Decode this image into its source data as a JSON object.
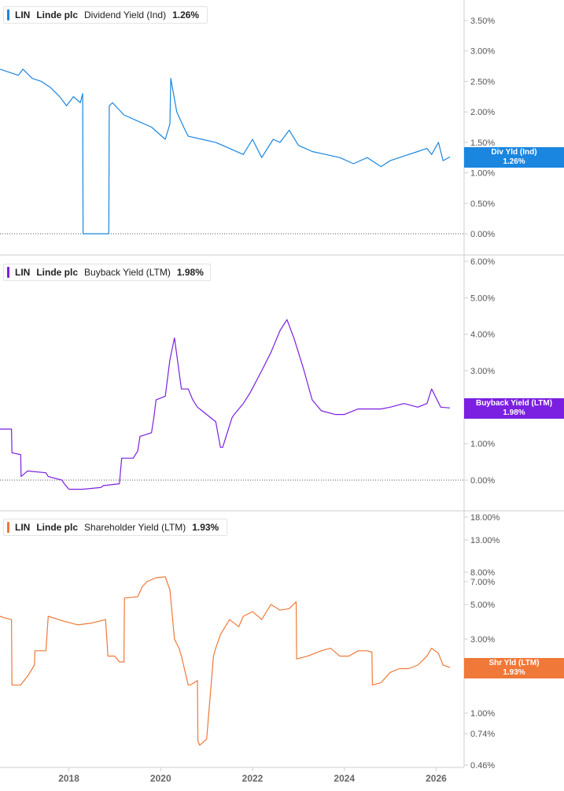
{
  "panels": [
    {
      "ticker": "LIN",
      "company": "Linde plc",
      "metric": "Dividend Yield (Ind)",
      "value": "1.26%",
      "color": "#1a86e0",
      "badge_label": "Div Yld (Ind)",
      "badge_value": "1.26%",
      "ticks": [
        "3.50%",
        "3.00%",
        "2.50%",
        "2.00%",
        "1.50%",
        "1.00%",
        "0.50%",
        "0.00%"
      ]
    },
    {
      "ticker": "LIN",
      "company": "Linde plc",
      "metric": "Buyback Yield (LTM)",
      "value": "1.98%",
      "color": "#7b1fe0",
      "badge_label": "Buyback Yield (LTM)",
      "badge_value": "1.98%",
      "ticks": [
        "6.00%",
        "5.00%",
        "4.00%",
        "3.00%",
        "1.00%",
        "0.00%"
      ]
    },
    {
      "ticker": "LIN",
      "company": "Linde plc",
      "metric": "Shareholder Yield (LTM)",
      "value": "1.93%",
      "color": "#f07838",
      "badge_label": "Shr Yld (LTM)",
      "badge_value": "1.93%",
      "ticks": [
        "18.00%",
        "13.00%",
        "8.00%",
        "7.00%",
        "5.00%",
        "3.00%",
        "2.0",
        "1.00%",
        "0.74%",
        "0.46%"
      ]
    }
  ],
  "x_axis": {
    "ticks": [
      "2018",
      "2020",
      "2022",
      "2024",
      "2026"
    ]
  },
  "chart_data": [
    {
      "type": "line",
      "title": "LIN Linde plc Dividend Yield (Ind) 1.26%",
      "ylim": [
        0,
        3.8
      ],
      "series": [
        {
          "name": "Dividend Yield (Ind)",
          "color": "#1a86e0",
          "x": [
            2016.5,
            2016.7,
            2016.9,
            2017.0,
            2017.2,
            2017.4,
            2017.6,
            2017.8,
            2017.95,
            2018.1,
            2018.25,
            2018.3,
            2018.31,
            2018.87,
            2018.88,
            2018.95,
            2019.2,
            2019.5,
            2019.8,
            2020.1,
            2020.2,
            2020.22,
            2020.35,
            2020.5,
            2020.6,
            2020.9,
            2021.2,
            2021.5,
            2021.8,
            2022.0,
            2022.2,
            2022.45,
            2022.6,
            2022.8,
            2023.0,
            2023.3,
            2023.6,
            2023.9,
            2024.2,
            2024.5,
            2024.8,
            2025.0,
            2025.2,
            2025.4,
            2025.6,
            2025.8,
            2025.9,
            2026.05,
            2026.15,
            2026.3
          ],
          "values": [
            2.7,
            2.65,
            2.6,
            2.7,
            2.55,
            2.5,
            2.4,
            2.25,
            2.1,
            2.25,
            2.15,
            2.3,
            0,
            0,
            2.1,
            2.15,
            1.95,
            1.85,
            1.75,
            1.55,
            1.8,
            2.55,
            2.0,
            1.75,
            1.6,
            1.55,
            1.5,
            1.4,
            1.3,
            1.55,
            1.25,
            1.55,
            1.5,
            1.7,
            1.45,
            1.35,
            1.3,
            1.25,
            1.15,
            1.25,
            1.1,
            1.2,
            1.25,
            1.3,
            1.35,
            1.4,
            1.3,
            1.5,
            1.2,
            1.26
          ]
        }
      ]
    },
    {
      "type": "line",
      "title": "LIN Linde plc Buyback Yield (LTM) 1.98%",
      "ylim": [
        -0.3,
        6.2
      ],
      "series": [
        {
          "name": "Buyback Yield (LTM)",
          "color": "#7b1fe0",
          "x": [
            2016.5,
            2016.75,
            2016.76,
            2016.95,
            2016.96,
            2017.1,
            2017.5,
            2017.55,
            2017.85,
            2017.9,
            2018.0,
            2018.3,
            2018.7,
            2018.75,
            2019.1,
            2019.15,
            2019.4,
            2019.5,
            2019.55,
            2019.8,
            2019.85,
            2019.9,
            2020.1,
            2020.2,
            2020.3,
            2020.45,
            2020.6,
            2020.7,
            2020.8,
            2021.0,
            2021.2,
            2021.3,
            2021.35,
            2021.55,
            2021.6,
            2021.8,
            2021.95,
            2022.2,
            2022.4,
            2022.6,
            2022.75,
            2022.9,
            2023.1,
            2023.3,
            2023.5,
            2023.8,
            2024.0,
            2024.3,
            2024.5,
            2024.8,
            2025.0,
            2025.3,
            2025.6,
            2025.8,
            2025.9,
            2026.1,
            2026.3
          ],
          "values": [
            1.4,
            1.4,
            0.75,
            0.7,
            0.1,
            0.25,
            0.2,
            0.1,
            0.0,
            -0.1,
            -0.25,
            -0.25,
            -0.2,
            -0.15,
            -0.1,
            0.6,
            0.6,
            0.8,
            1.2,
            1.3,
            1.7,
            2.2,
            2.3,
            3.3,
            3.9,
            2.5,
            2.5,
            2.2,
            2.0,
            1.8,
            1.6,
            0.9,
            0.9,
            1.7,
            1.8,
            2.1,
            2.4,
            3.0,
            3.5,
            4.1,
            4.4,
            3.9,
            3.1,
            2.2,
            1.9,
            1.8,
            1.8,
            1.95,
            1.95,
            1.95,
            2.0,
            2.1,
            2.0,
            2.1,
            2.5,
            2.0,
            1.98
          ]
        }
      ]
    },
    {
      "type": "line",
      "title": "LIN Linde plc Shareholder Yield (LTM) 1.93%",
      "y_scale": "log",
      "ylim": [
        0.46,
        18.0
      ],
      "series": [
        {
          "name": "Shareholder Yield (LTM)",
          "color": "#f07838",
          "x": [
            2016.5,
            2016.6,
            2016.75,
            2016.76,
            2016.95,
            2017.1,
            2017.25,
            2017.26,
            2017.5,
            2017.55,
            2017.9,
            2018.2,
            2018.5,
            2018.8,
            2018.85,
            2019.0,
            2019.1,
            2019.2,
            2019.21,
            2019.5,
            2019.6,
            2019.7,
            2019.9,
            2020.1,
            2020.2,
            2020.3,
            2020.4,
            2020.45,
            2020.6,
            2020.65,
            2020.8,
            2020.81,
            2020.85,
            2021.0,
            2021.15,
            2021.2,
            2021.3,
            2021.5,
            2021.7,
            2021.8,
            2022.0,
            2022.2,
            2022.4,
            2022.6,
            2022.8,
            2022.95,
            2022.96,
            2023.2,
            2023.5,
            2023.7,
            2023.9,
            2024.1,
            2024.3,
            2024.5,
            2024.6,
            2024.61,
            2024.8,
            2025.0,
            2025.2,
            2025.4,
            2025.6,
            2025.8,
            2025.9,
            2026.05,
            2026.15,
            2026.3
          ],
          "values": [
            4.2,
            4.1,
            4.0,
            1.5,
            1.5,
            1.7,
            2.0,
            2.5,
            2.5,
            4.2,
            3.9,
            3.7,
            3.8,
            4.0,
            2.3,
            2.3,
            2.1,
            2.1,
            5.5,
            5.6,
            6.5,
            7.0,
            7.4,
            7.5,
            6.2,
            3.0,
            2.6,
            2.3,
            1.5,
            1.5,
            1.6,
            0.66,
            0.62,
            0.68,
            2.3,
            2.6,
            3.2,
            4.0,
            3.6,
            4.2,
            4.5,
            4.0,
            5.0,
            4.6,
            4.7,
            5.2,
            2.2,
            2.3,
            2.5,
            2.6,
            2.3,
            2.3,
            2.5,
            2.5,
            2.45,
            1.5,
            1.55,
            1.8,
            1.9,
            1.9,
            2.0,
            2.3,
            2.6,
            2.4,
            2.0,
            1.93
          ]
        }
      ]
    }
  ]
}
